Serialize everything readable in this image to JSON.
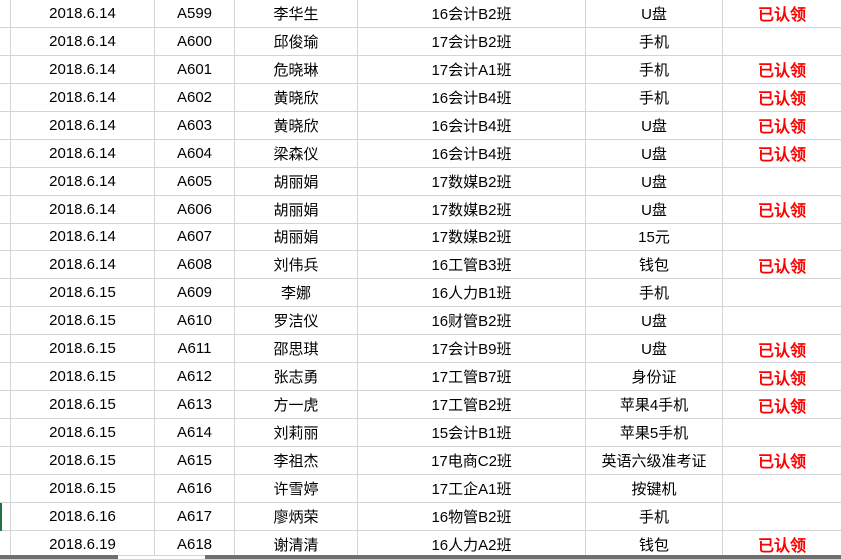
{
  "table": {
    "columns": [
      "date",
      "id",
      "name",
      "class_name",
      "item",
      "status"
    ],
    "status_claimed_label": "已认领",
    "rows": [
      {
        "date": "2018.6.14",
        "id": "A599",
        "name": "李华生",
        "class_name": "16会计B2班",
        "item": "U盘",
        "status": "已认领"
      },
      {
        "date": "2018.6.14",
        "id": "A600",
        "name": "邱俊瑜",
        "class_name": "17会计B2班",
        "item": "手机",
        "status": ""
      },
      {
        "date": "2018.6.14",
        "id": "A601",
        "name": "危晓琳",
        "class_name": "17会计A1班",
        "item": "手机",
        "status": "已认领"
      },
      {
        "date": "2018.6.14",
        "id": "A602",
        "name": "黄晓欣",
        "class_name": "16会计B4班",
        "item": "手机",
        "status": "已认领"
      },
      {
        "date": "2018.6.14",
        "id": "A603",
        "name": "黄晓欣",
        "class_name": "16会计B4班",
        "item": "U盘",
        "status": "已认领"
      },
      {
        "date": "2018.6.14",
        "id": "A604",
        "name": "梁森仪",
        "class_name": "16会计B4班",
        "item": "U盘",
        "status": "已认领"
      },
      {
        "date": "2018.6.14",
        "id": "A605",
        "name": "胡丽娟",
        "class_name": "17数媒B2班",
        "item": "U盘",
        "status": ""
      },
      {
        "date": "2018.6.14",
        "id": "A606",
        "name": "胡丽娟",
        "class_name": "17数媒B2班",
        "item": "U盘",
        "status": "已认领"
      },
      {
        "date": "2018.6.14",
        "id": "A607",
        "name": "胡丽娟",
        "class_name": "17数媒B2班",
        "item": "15元",
        "status": ""
      },
      {
        "date": "2018.6.14",
        "id": "A608",
        "name": "刘伟兵",
        "class_name": "16工管B3班",
        "item": "钱包",
        "status": "已认领"
      },
      {
        "date": "2018.6.15",
        "id": "A609",
        "name": "李娜",
        "class_name": "16人力B1班",
        "item": "手机",
        "status": ""
      },
      {
        "date": "2018.6.15",
        "id": "A610",
        "name": "罗洁仪",
        "class_name": "16财管B2班",
        "item": "U盘",
        "status": ""
      },
      {
        "date": "2018.6.15",
        "id": "A611",
        "name": "邵思琪",
        "class_name": "17会计B9班",
        "item": "U盘",
        "status": "已认领"
      },
      {
        "date": "2018.6.15",
        "id": "A612",
        "name": "张志勇",
        "class_name": "17工管B7班",
        "item": "身份证",
        "status": "已认领"
      },
      {
        "date": "2018.6.15",
        "id": "A613",
        "name": "方一虎",
        "class_name": "17工管B2班",
        "item": "苹果4手机",
        "status": "已认领"
      },
      {
        "date": "2018.6.15",
        "id": "A614",
        "name": "刘莉丽",
        "class_name": "15会计B1班",
        "item": "苹果5手机",
        "status": ""
      },
      {
        "date": "2018.6.15",
        "id": "A615",
        "name": "李祖杰",
        "class_name": "17电商C2班",
        "item": "英语六级准考证",
        "status": "已认领"
      },
      {
        "date": "2018.6.15",
        "id": "A616",
        "name": "许雪婷",
        "class_name": "17工企A1班",
        "item": "按键机",
        "status": ""
      },
      {
        "date": "2018.6.16",
        "id": "A617",
        "name": "廖炳荣",
        "class_name": "16物管B2班",
        "item": "手机",
        "status": ""
      },
      {
        "date": "2018.6.19",
        "id": "A618",
        "name": "谢清清",
        "class_name": "16人力A2班",
        "item": "钱包",
        "status": "已认领"
      }
    ]
  },
  "colors": {
    "grid_line": "#d4d4d4",
    "status_red": "#ff0000",
    "selection_green": "#217346",
    "bottom_band_gray": "#6f6f6f"
  },
  "selection": {
    "row_index": 18
  }
}
